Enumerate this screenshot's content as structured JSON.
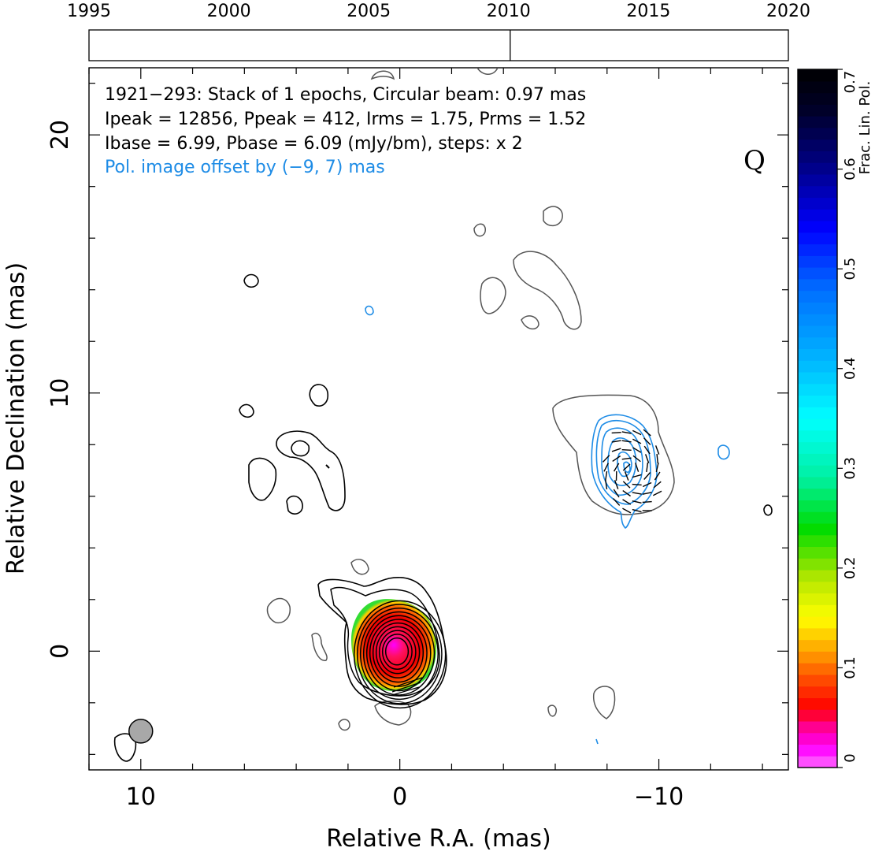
{
  "chart_data": {
    "type": "contour",
    "source": "1921−293",
    "info_lines": [
      "1921−293: Stack of 1 epochs, Circular beam: 0.97 mas",
      "Ipeak = 12856, Ppeak = 412, Irms = 1.75, Prms = 1.52",
      "Ibase = 6.99, Pbase = 6.09 (mJy/bm), steps: x 2"
    ],
    "offset_note": "Pol. image offset by (−9, 7) mas",
    "band_label": "Q",
    "xlabel": "Relative R.A. (mas)",
    "ylabel": "Relative Declination (mas)",
    "xlim": [
      12,
      -15
    ],
    "ylim": [
      -4.6,
      22.6
    ],
    "x_ticks": [
      {
        "value": 10,
        "label": "10"
      },
      {
        "value": 0,
        "label": "0"
      },
      {
        "value": -10,
        "label": "−10"
      }
    ],
    "y_ticks": [
      {
        "value": 0,
        "label": "0"
      },
      {
        "value": 10,
        "label": "10"
      },
      {
        "value": 20,
        "label": "20"
      }
    ],
    "x_minor_step": 2,
    "y_minor_step": 2,
    "timeline": {
      "range": [
        1995,
        2020
      ],
      "labels": [
        "1995",
        "2000",
        "2005",
        "2010",
        "2015",
        "2020"
      ],
      "epoch_marks": [
        2010.0
      ]
    },
    "colorbar": {
      "label": "Frac. Lin. Pol.",
      "range": [
        0,
        0.7
      ],
      "ticks": [
        "0",
        "0.1",
        "0.2",
        "0.3",
        "0.4",
        "0.5",
        "0.6",
        "0.7"
      ]
    },
    "beam": {
      "x": 10,
      "y": -3.1,
      "diameter_mas": 0.97
    },
    "core": {
      "x": 0,
      "y": 0,
      "peak_mJy_per_beam": 12856
    },
    "total_intensity_levels": 11,
    "pol_component_center": {
      "x": -9,
      "y": 7
    },
    "colors": {
      "total_intensity": "#000000",
      "faint_intensity": "#555555",
      "polarization": "#1e8ce6",
      "beam_fill": "#a8a8a8"
    }
  }
}
